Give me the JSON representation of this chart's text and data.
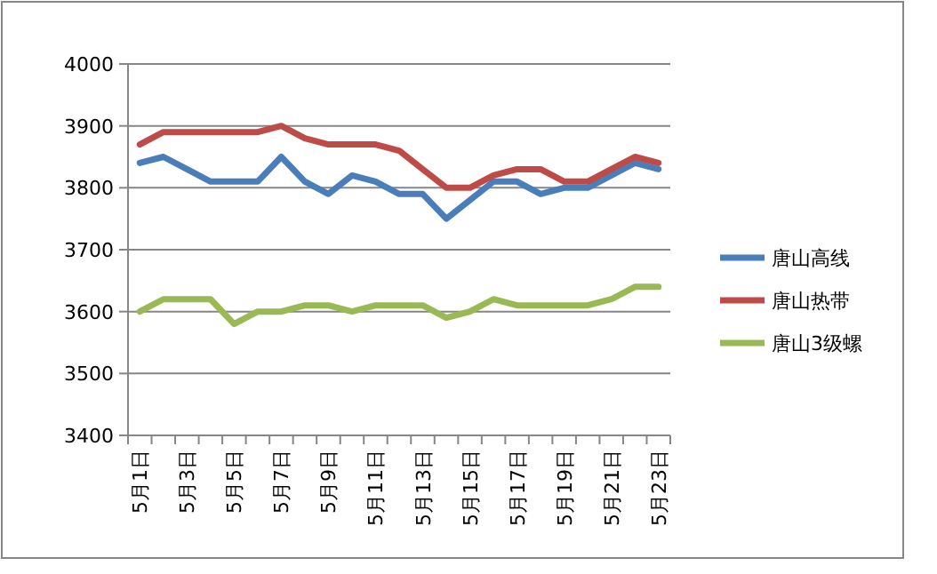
{
  "chart_data": {
    "type": "line",
    "categories": [
      "5月1日",
      null,
      "5月3日",
      null,
      "5月5日",
      null,
      "5月7日",
      null,
      "5月9日",
      null,
      "5月11日",
      null,
      "5月13日",
      null,
      "5月15日",
      null,
      "5月17日",
      null,
      "5月19日",
      null,
      "5月21日",
      null,
      "5月23日"
    ],
    "series": [
      {
        "name": "唐山高线",
        "color": "#4a7ebb",
        "values": [
          3840,
          3850,
          3830,
          3810,
          3810,
          3810,
          3850,
          3810,
          3790,
          3820,
          3810,
          3790,
          3790,
          3750,
          3780,
          3810,
          3810,
          3790,
          3800,
          3800,
          3820,
          3840,
          3830
        ]
      },
      {
        "name": "唐山热带",
        "color": "#be4b48",
        "values": [
          3870,
          3890,
          3890,
          3890,
          3890,
          3890,
          3900,
          3880,
          3870,
          3870,
          3870,
          3860,
          3830,
          3800,
          3800,
          3820,
          3830,
          3830,
          3810,
          3810,
          3830,
          3850,
          3840
        ]
      },
      {
        "name": "唐山3级螺",
        "color": "#98b954",
        "values": [
          3600,
          3620,
          3620,
          3620,
          3580,
          3600,
          3600,
          3610,
          3610,
          3600,
          3610,
          3610,
          3610,
          3590,
          3600,
          3620,
          3610,
          3610,
          3610,
          3610,
          3620,
          3640,
          3640
        ]
      }
    ],
    "ylim": [
      3400,
      4000
    ],
    "yticks": [
      3400,
      3500,
      3600,
      3700,
      3800,
      3900,
      4000
    ],
    "grid": "y",
    "legend": "right",
    "marker": "none",
    "line_style": "solid"
  }
}
